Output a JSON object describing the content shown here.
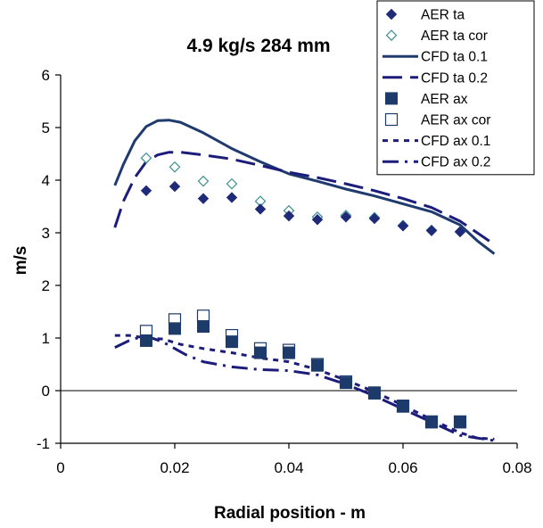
{
  "chart_data": {
    "type": "scatter",
    "title": "4.9 kg/s 284 mm",
    "xlabel": "Radial position - m",
    "ylabel": "m/s",
    "xlim": [
      0,
      0.08
    ],
    "ylim": [
      -1,
      6
    ],
    "x_ticks": [
      "0",
      "0.02",
      "0.04",
      "0.06",
      "0.08"
    ],
    "y_ticks": [
      "-1",
      "0",
      "1",
      "2",
      "3",
      "4",
      "5",
      "6"
    ],
    "grid": false,
    "legend_position": "top-right",
    "series": [
      {
        "name": "AER ta",
        "kind": "marker",
        "marker": "diamond-filled",
        "color": "#1f2a78",
        "x": [
          0.015,
          0.02,
          0.025,
          0.03,
          0.035,
          0.04,
          0.045,
          0.05,
          0.055,
          0.06,
          0.065,
          0.07
        ],
        "y": [
          3.8,
          3.88,
          3.65,
          3.67,
          3.45,
          3.32,
          3.25,
          3.3,
          3.27,
          3.13,
          3.04,
          3.02
        ]
      },
      {
        "name": "AER ta cor",
        "kind": "marker",
        "marker": "diamond-open",
        "color": "#3d8f8f",
        "x": [
          0.015,
          0.02,
          0.025,
          0.03,
          0.035,
          0.04,
          0.045,
          0.05,
          0.055,
          0.06,
          0.065,
          0.07
        ],
        "y": [
          4.42,
          4.25,
          3.98,
          3.93,
          3.6,
          3.42,
          3.3,
          3.33,
          3.29,
          3.14,
          3.05,
          3.02
        ]
      },
      {
        "name": "CFD ta 0.1",
        "kind": "line",
        "dash": "solid",
        "color": "#1f3b6e",
        "x": [
          0.0095,
          0.011,
          0.013,
          0.015,
          0.017,
          0.019,
          0.021,
          0.025,
          0.03,
          0.035,
          0.04,
          0.045,
          0.05,
          0.055,
          0.06,
          0.065,
          0.07,
          0.073,
          0.076
        ],
        "y": [
          3.9,
          4.3,
          4.75,
          5.02,
          5.13,
          5.14,
          5.1,
          4.9,
          4.6,
          4.35,
          4.12,
          3.98,
          3.83,
          3.7,
          3.55,
          3.4,
          3.15,
          2.85,
          2.6
        ]
      },
      {
        "name": "CFD ta 0.2",
        "kind": "line",
        "dash": "long",
        "color": "#1c1d7a",
        "x": [
          0.0095,
          0.011,
          0.013,
          0.015,
          0.017,
          0.019,
          0.021,
          0.025,
          0.03,
          0.035,
          0.04,
          0.045,
          0.05,
          0.055,
          0.06,
          0.065,
          0.07,
          0.073,
          0.076
        ],
        "y": [
          3.1,
          3.6,
          4.05,
          4.35,
          4.48,
          4.53,
          4.53,
          4.48,
          4.4,
          4.28,
          4.15,
          4.05,
          3.93,
          3.8,
          3.65,
          3.48,
          3.22,
          3.0,
          2.78
        ]
      },
      {
        "name": "AER ax",
        "kind": "marker",
        "marker": "square-filled",
        "color": "#1c3a6a",
        "x": [
          0.015,
          0.02,
          0.025,
          0.03,
          0.035,
          0.04,
          0.045,
          0.05,
          0.055,
          0.06,
          0.065,
          0.07
        ],
        "y": [
          0.95,
          1.18,
          1.22,
          0.93,
          0.72,
          0.72,
          0.48,
          0.15,
          -0.05,
          -0.3,
          -0.6,
          -0.6
        ]
      },
      {
        "name": "AER ax cor",
        "kind": "marker",
        "marker": "square-open",
        "color": "#1c3a6a",
        "x": [
          0.015,
          0.02,
          0.025,
          0.03,
          0.035,
          0.04,
          0.045,
          0.05,
          0.055,
          0.06,
          0.065,
          0.07
        ],
        "y": [
          1.13,
          1.35,
          1.42,
          1.05,
          0.8,
          0.77,
          0.5,
          0.17,
          -0.04,
          -0.29,
          -0.59,
          -0.59
        ]
      },
      {
        "name": "CFD ax 0.1",
        "kind": "line",
        "dash": "short",
        "color": "#1c1d7a",
        "x": [
          0.0095,
          0.012,
          0.015,
          0.018,
          0.021,
          0.025,
          0.03,
          0.035,
          0.04,
          0.045,
          0.05,
          0.055,
          0.06,
          0.065,
          0.07,
          0.073,
          0.076
        ],
        "y": [
          1.05,
          1.05,
          1.0,
          0.98,
          0.88,
          0.8,
          0.72,
          0.62,
          0.55,
          0.4,
          0.2,
          -0.02,
          -0.28,
          -0.55,
          -0.8,
          -0.9,
          -0.92
        ]
      },
      {
        "name": "CFD ax 0.2",
        "kind": "line",
        "dash": "dashdot",
        "color": "#1c1d7a",
        "x": [
          0.0095,
          0.012,
          0.014,
          0.016,
          0.018,
          0.02,
          0.022,
          0.025,
          0.03,
          0.035,
          0.04,
          0.045,
          0.05,
          0.055,
          0.06,
          0.065,
          0.07,
          0.073,
          0.076
        ],
        "y": [
          0.82,
          0.95,
          1.02,
          1.0,
          0.92,
          0.8,
          0.68,
          0.55,
          0.45,
          0.4,
          0.38,
          0.3,
          0.12,
          -0.1,
          -0.35,
          -0.6,
          -0.85,
          -0.9,
          -0.95
        ]
      }
    ]
  }
}
